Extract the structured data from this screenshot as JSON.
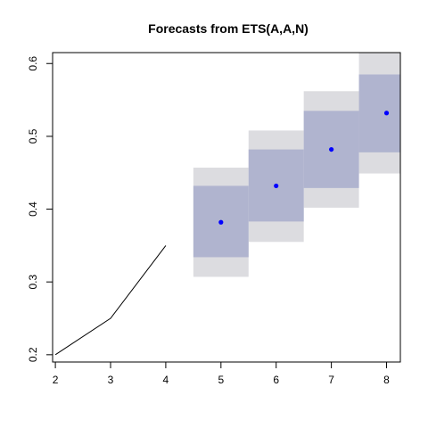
{
  "chart_data": {
    "type": "line",
    "title": "Forecasts from ETS(A,A,N)",
    "xlabel": "",
    "ylabel": "",
    "xlim": [
      1.95,
      8.25
    ],
    "ylim": [
      0.19,
      0.615
    ],
    "x_ticks": [
      2,
      3,
      4,
      5,
      6,
      7,
      8
    ],
    "y_ticks": [
      0.2,
      0.3,
      0.4,
      0.5,
      0.6
    ],
    "grid": false,
    "legend": "none",
    "series": [
      {
        "role": "history",
        "color": "#000000",
        "x": [
          2,
          3,
          4
        ],
        "y": [
          0.2,
          0.25,
          0.35
        ]
      },
      {
        "role": "forecast",
        "color": "#0000ff",
        "x": [
          5,
          6,
          7,
          8
        ],
        "y": [
          0.382,
          0.432,
          0.482,
          0.532
        ],
        "interval_80": {
          "color": "#b0b4cf",
          "lower": [
            0.334,
            0.383,
            0.429,
            0.478
          ],
          "upper": [
            0.432,
            0.482,
            0.535,
            0.585
          ]
        },
        "interval_95": {
          "color": "#dcdce0",
          "lower": [
            0.307,
            0.355,
            0.402,
            0.449
          ],
          "upper": [
            0.457,
            0.508,
            0.562,
            0.615
          ]
        }
      }
    ]
  }
}
